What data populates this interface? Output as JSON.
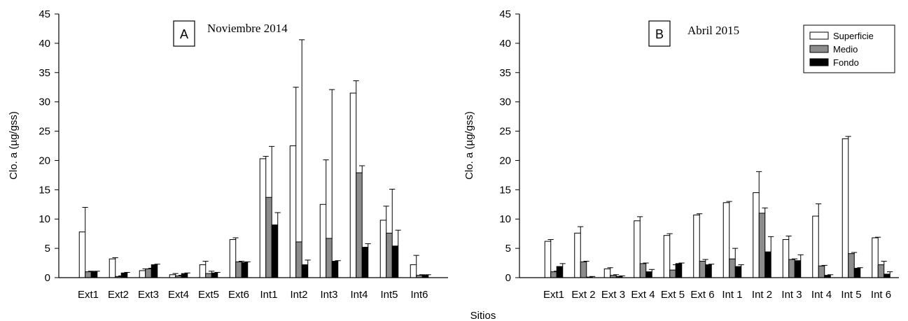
{
  "chart_data": [
    {
      "type": "bar",
      "panel_label": "A",
      "title": "Noviembre 2014",
      "ylabel": "Clo. a (µg/gss)",
      "ylim": [
        0,
        45
      ],
      "yticks": [
        0,
        5,
        10,
        15,
        20,
        25,
        30,
        35,
        40,
        45
      ],
      "categories": [
        "Ext1",
        "Ext2",
        "Ext3",
        "Ext4",
        "Ext5",
        "Ext6",
        "Int1",
        "Int2",
        "Int3",
        "Int4",
        "Int5",
        "Int6"
      ],
      "series": [
        {
          "name": "Superficie",
          "color": "#ffffff",
          "values": [
            7.8,
            3.2,
            1.2,
            0.5,
            2.2,
            6.5,
            20.3,
            22.5,
            12.5,
            31.5,
            9.8,
            2.2
          ],
          "errors": [
            4.2,
            0.2,
            0.3,
            0.2,
            0.6,
            0.3,
            0.4,
            10.0,
            7.6,
            2.1,
            2.4,
            1.6
          ]
        },
        {
          "name": "Medio",
          "color": "#8c8c8c",
          "values": [
            1.0,
            0.2,
            1.5,
            0.3,
            0.7,
            2.7,
            13.7,
            6.1,
            6.7,
            17.9,
            7.6,
            0.4
          ],
          "errors": [
            0.1,
            0.1,
            0.1,
            0.1,
            0.4,
            0.1,
            8.7,
            34.5,
            25.4,
            1.2,
            7.5,
            0.1
          ]
        },
        {
          "name": "Fondo",
          "color": "#000000",
          "values": [
            1.0,
            0.8,
            2.2,
            0.7,
            0.8,
            2.6,
            9.0,
            2.2,
            2.8,
            5.2,
            5.4,
            0.4
          ],
          "errors": [
            0.1,
            0.1,
            0.1,
            0.1,
            0.1,
            0.1,
            2.1,
            0.8,
            0.1,
            0.6,
            2.7,
            0.1
          ]
        }
      ]
    },
    {
      "type": "bar",
      "panel_label": "B",
      "title": "Abril 2015",
      "ylabel": "Clo. a (µg/gss)",
      "ylim": [
        0,
        45
      ],
      "yticks": [
        0,
        5,
        10,
        15,
        20,
        25,
        30,
        35,
        40,
        45
      ],
      "categories": [
        "Ext1",
        "Ext 2",
        "Ext 3",
        "Ext 4",
        "Ext 5",
        "Ext 6",
        "Int 1",
        "Int 2",
        "Int 3",
        "Int 4",
        "Int 5",
        "Int 6"
      ],
      "legend": {
        "position": "top-right",
        "entries": [
          "Superficie",
          "Medio",
          "Fondo"
        ]
      },
      "series": [
        {
          "name": "Superficie",
          "color": "#ffffff",
          "values": [
            6.2,
            7.6,
            1.5,
            9.7,
            7.2,
            10.7,
            12.8,
            14.5,
            6.5,
            10.5,
            23.7,
            6.8
          ],
          "errors": [
            0.3,
            1.1,
            0.2,
            0.7,
            0.3,
            0.2,
            0.2,
            3.6,
            0.6,
            2.1,
            0.4,
            0.1
          ]
        },
        {
          "name": "Medio",
          "color": "#8c8c8c",
          "values": [
            1.0,
            2.7,
            0.4,
            2.4,
            1.3,
            2.8,
            3.2,
            11.0,
            3.1,
            2.0,
            4.1,
            2.2
          ],
          "errors": [
            0.1,
            0.1,
            0.1,
            0.1,
            0.9,
            0.3,
            1.8,
            0.9,
            0.1,
            0.1,
            0.2,
            0.6
          ]
        },
        {
          "name": "Fondo",
          "color": "#000000",
          "values": [
            1.9,
            0.1,
            0.2,
            1.0,
            2.4,
            2.2,
            1.9,
            4.4,
            2.9,
            0.4,
            1.6,
            0.6
          ],
          "errors": [
            0.5,
            0.1,
            0.1,
            0.4,
            0.1,
            0.1,
            0.3,
            2.6,
            1.0,
            0.1,
            0.1,
            0.4
          ]
        }
      ]
    }
  ],
  "xlabel": "Sitios"
}
